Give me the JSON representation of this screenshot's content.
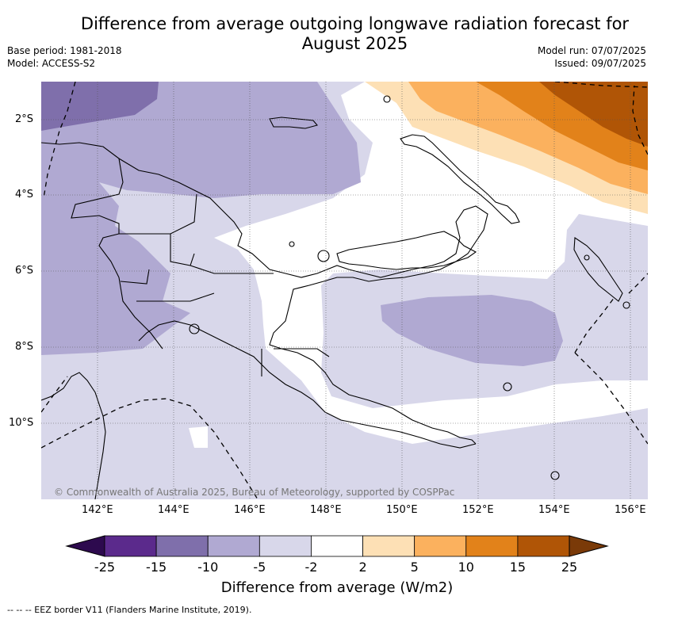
{
  "title_line1": "Difference from average outgoing longwave radiation forecast for",
  "title_line2": "August 2025",
  "base_period": "Base period: 1981-2018",
  "model": "Model: ACCESS-S2",
  "model_run": "Model run: 07/07/2025",
  "issued": "Issued: 09/07/2025",
  "lat_labels": [
    "2°S",
    "4°S",
    "6°S",
    "8°S",
    "10°S"
  ],
  "lon_labels": [
    "142°E",
    "144°E",
    "146°E",
    "148°E",
    "150°E",
    "152°E",
    "154°E",
    "156°E"
  ],
  "copyright": "© Commonwealth of Australia 2025, Bureau of Meteorology, supported by COSPPac",
  "colorbar": {
    "ticks": [
      "-25",
      "-15",
      "-10",
      "-5",
      "-2",
      "2",
      "5",
      "10",
      "15",
      "25"
    ],
    "colors": [
      "#2d0a4e",
      "#5b2a8c",
      "#7f6fab",
      "#b0a9d2",
      "#d8d7ea",
      "#ffffff",
      "#fde0b5",
      "#fbb15e",
      "#e2821a",
      "#b05506",
      "#7a3a08"
    ],
    "label": "Difference from average (W/m2)"
  },
  "footnote": "--  --  -- EEZ border V11 (Flanders Marine Institute, 2019)."
}
